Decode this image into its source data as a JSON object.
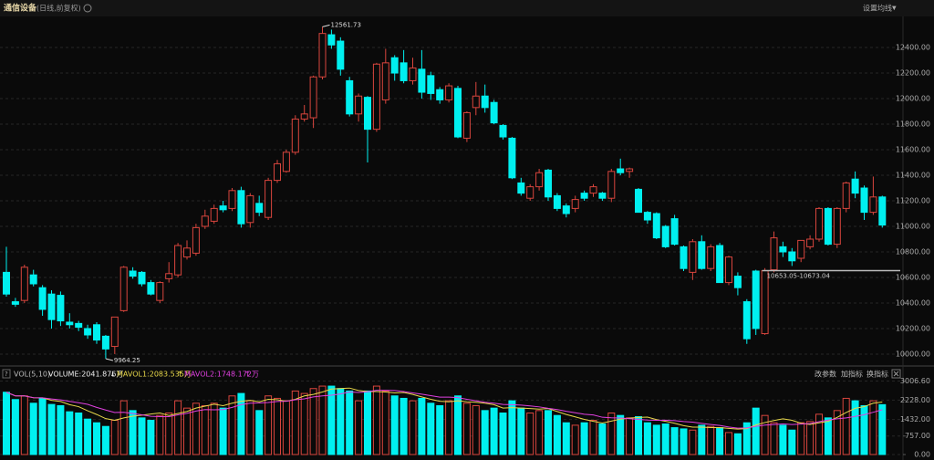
{
  "header": {
    "title": "通信设备",
    "subtitle": "(日线,前复权)",
    "menu": "设置均线"
  },
  "chart_data": [
    {
      "type": "candlestick",
      "up_color": "#d9453d",
      "down_color": "#00f0f0",
      "grid": true,
      "ylim": [
        9914,
        12629
      ],
      "yticks": [
        {
          "value": 10000,
          "label": "10000.00"
        },
        {
          "value": 10200,
          "label": "10200.00"
        },
        {
          "value": 10400,
          "label": "10400.00"
        },
        {
          "value": 10600,
          "label": "10600.00"
        },
        {
          "value": 10800,
          "label": "10800.00"
        },
        {
          "value": 11000,
          "label": "11000.00"
        },
        {
          "value": 11200,
          "label": "11200.00"
        },
        {
          "value": 11400,
          "label": "11400.00"
        },
        {
          "value": 11600,
          "label": "11600.00"
        },
        {
          "value": 11800,
          "label": "11800.00"
        },
        {
          "value": 12000,
          "label": "12000.00"
        },
        {
          "value": 12200,
          "label": "12200.00"
        },
        {
          "value": 12400,
          "label": "12400.00"
        }
      ],
      "open": [
        10640,
        10410,
        10420,
        10620,
        10520,
        10470,
        10460,
        10250,
        10240,
        10200,
        10230,
        10140,
        10060,
        10340,
        10650,
        10640,
        10560,
        10420,
        10590,
        10620,
        10760,
        10790,
        11000,
        11040,
        11160,
        11140,
        11280,
        11030,
        11180,
        11070,
        11360,
        11430,
        11580,
        11840,
        11850,
        12170,
        12500,
        12450,
        12140,
        11880,
        12010,
        11760,
        11990,
        12320,
        12280,
        12140,
        12230,
        12180,
        12070,
        11990,
        12080,
        11690,
        11930,
        12020,
        11970,
        11790,
        11690,
        11340,
        11220,
        11310,
        11440,
        11240,
        11160,
        11140,
        11260,
        11260,
        11260,
        11220,
        11450,
        11430,
        11290,
        11110,
        11100,
        11000,
        11060,
        10840,
        10640,
        10880,
        10670,
        10850,
        10560,
        10610,
        10410,
        10650,
        10160,
        10660,
        10840,
        10800,
        10750,
        10840,
        10900,
        11140,
        10860,
        11140,
        11370,
        11300,
        11110,
        11230
      ],
      "high": [
        10840,
        10440,
        10700,
        10660,
        10540,
        10500,
        10490,
        10320,
        10260,
        10230,
        10250,
        10150,
        10290,
        10690,
        10680,
        10650,
        10580,
        10570,
        10720,
        10870,
        10890,
        11020,
        11130,
        11170,
        11200,
        11300,
        11310,
        11260,
        11240,
        11380,
        11520,
        11600,
        11870,
        11950,
        12180,
        12561.73,
        12540,
        12480,
        12170,
        12040,
        12020,
        12280,
        12390,
        12340,
        12380,
        12320,
        12380,
        12210,
        12090,
        12120,
        12100,
        11900,
        12130,
        12110,
        11990,
        11800,
        11700,
        11380,
        11330,
        11450,
        11450,
        11260,
        11180,
        11240,
        11280,
        11330,
        11270,
        11450,
        11530,
        11460,
        11300,
        11120,
        11110,
        11010,
        11090,
        10850,
        10900,
        10930,
        10860,
        10870,
        10770,
        10640,
        10430,
        10660,
        10673.04,
        10960,
        10880,
        10830,
        10880,
        10930,
        11150,
        11150,
        11150,
        11350,
        11430,
        11320,
        11390,
        11240
      ],
      "low": [
        10450,
        10370,
        10400,
        10530,
        10300,
        10200,
        10220,
        10200,
        10180,
        10120,
        10080,
        9964.25,
        10000,
        10330,
        10590,
        10530,
        10460,
        10400,
        10560,
        10600,
        10740,
        10770,
        10980,
        11020,
        11110,
        11120,
        10990,
        10990,
        11080,
        11050,
        11340,
        11420,
        11560,
        11820,
        11770,
        12150,
        12390,
        12180,
        11860,
        11820,
        11500,
        11740,
        11960,
        12140,
        12120,
        12110,
        12000,
        11990,
        11960,
        11970,
        11690,
        11660,
        11870,
        11890,
        11800,
        11680,
        11370,
        11240,
        11200,
        11280,
        11200,
        11120,
        11070,
        11110,
        11200,
        11230,
        11200,
        11190,
        11400,
        11380,
        11110,
        11020,
        10900,
        10830,
        10850,
        10650,
        10580,
        10660,
        10650,
        10560,
        10540,
        10460,
        10080,
        10150,
        10150,
        10640,
        10760,
        10690,
        10720,
        10820,
        10880,
        10850,
        10830,
        11110,
        11220,
        11050,
        11090,
        10990
      ],
      "close": [
        10470,
        10390,
        10680,
        10550,
        10350,
        10270,
        10260,
        10230,
        10210,
        10150,
        10110,
        10040,
        10290,
        10680,
        10610,
        10550,
        10470,
        10560,
        10630,
        10850,
        10830,
        10990,
        11080,
        11140,
        11130,
        11280,
        11020,
        11240,
        11110,
        11360,
        11490,
        11580,
        11840,
        11880,
        12170,
        12510,
        12420,
        12230,
        11880,
        12020,
        11760,
        12270,
        12280,
        12200,
        12140,
        12240,
        12050,
        12040,
        11990,
        12100,
        11700,
        11890,
        12020,
        11930,
        11810,
        11700,
        11380,
        11260,
        11310,
        11420,
        11230,
        11140,
        11100,
        11210,
        11220,
        11310,
        11220,
        11430,
        11420,
        11450,
        11110,
        11050,
        10910,
        10840,
        10860,
        10670,
        10880,
        10670,
        10840,
        10560,
        10760,
        10520,
        10120,
        10200,
        10653.05,
        10910,
        10800,
        10730,
        10890,
        10900,
        11140,
        10860,
        11140,
        11340,
        11260,
        11110,
        11230,
        11010
      ],
      "annotations": [
        {
          "label": "12561.73",
          "value": 12561.73
        },
        {
          "label": "9964.25",
          "value": 9964.25
        }
      ],
      "price_line": {
        "label": "10653.05-10673.04",
        "low": 10653.05,
        "high": 10673.04
      }
    },
    {
      "type": "bar",
      "indicator": "VOL(5,10)",
      "volume_label": "VOLUME:2041.876万",
      "ma1_label": "MAVOL1:2083.535万",
      "ma2_label": "MAVOL2:1748.172万",
      "ma1_color": "#e8d84a",
      "ma2_color": "#e040e0",
      "buttons": [
        "改参数",
        "加指标",
        "换指标"
      ],
      "ylim": [
        0,
        3400
      ],
      "yticks": [
        {
          "value": 0,
          "label": "0.00"
        },
        {
          "value": 757,
          "label": "757.00"
        },
        {
          "value": 1432,
          "label": "1432.00"
        },
        {
          "value": 2228,
          "label": "2228.00"
        },
        {
          "value": 3006.6,
          "label": "3006.60"
        }
      ],
      "values": [
        2550,
        2250,
        2400,
        2100,
        2300,
        2050,
        2000,
        1750,
        1700,
        1450,
        1300,
        1150,
        1400,
        2200,
        1800,
        1500,
        1400,
        1600,
        1700,
        2200,
        1900,
        2100,
        2000,
        2100,
        1900,
        2400,
        2500,
        2200,
        1800,
        2400,
        2300,
        2200,
        2600,
        2500,
        2700,
        2800,
        2800,
        2700,
        2600,
        2200,
        2600,
        2800,
        2600,
        2400,
        2300,
        2200,
        2300,
        2100,
        2000,
        2200,
        2400,
        2100,
        2000,
        1800,
        1900,
        1700,
        2200,
        1900,
        1700,
        1800,
        1800,
        1600,
        1300,
        1200,
        1300,
        1400,
        1250,
        1700,
        1600,
        1500,
        1550,
        1300,
        1200,
        1250,
        1100,
        1050,
        1000,
        1200,
        1150,
        1100,
        900,
        850,
        1300,
        1900,
        1600,
        1300,
        1200,
        1000,
        1300,
        1350,
        1650,
        1500,
        1800,
        2300,
        2200,
        2000,
        2200,
        2041.876
      ]
    }
  ]
}
